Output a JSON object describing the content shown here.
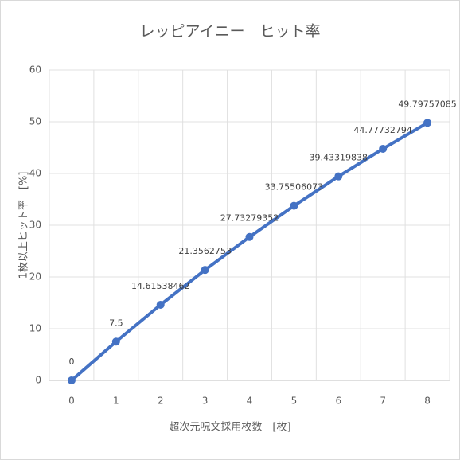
{
  "chart_data": {
    "type": "line",
    "title": "レッピアイニー　ヒット率",
    "x_label": "超次元呪文採用枚数　[枚]",
    "y_label": "1枚以上ヒット率　[%]",
    "categories": [
      "0",
      "1",
      "2",
      "3",
      "4",
      "5",
      "6",
      "7",
      "8"
    ],
    "series": [
      {
        "name": "ヒット率",
        "color": "#4472c4",
        "values": [
          0,
          7.5,
          14.61538462,
          21.3562753,
          27.73279352,
          33.75506073,
          39.43319838,
          44.77732794,
          49.79757085
        ]
      }
    ],
    "ylim": [
      0,
      60
    ],
    "yticks": [
      0,
      10,
      20,
      30,
      40,
      50,
      60
    ],
    "grid": true
  }
}
